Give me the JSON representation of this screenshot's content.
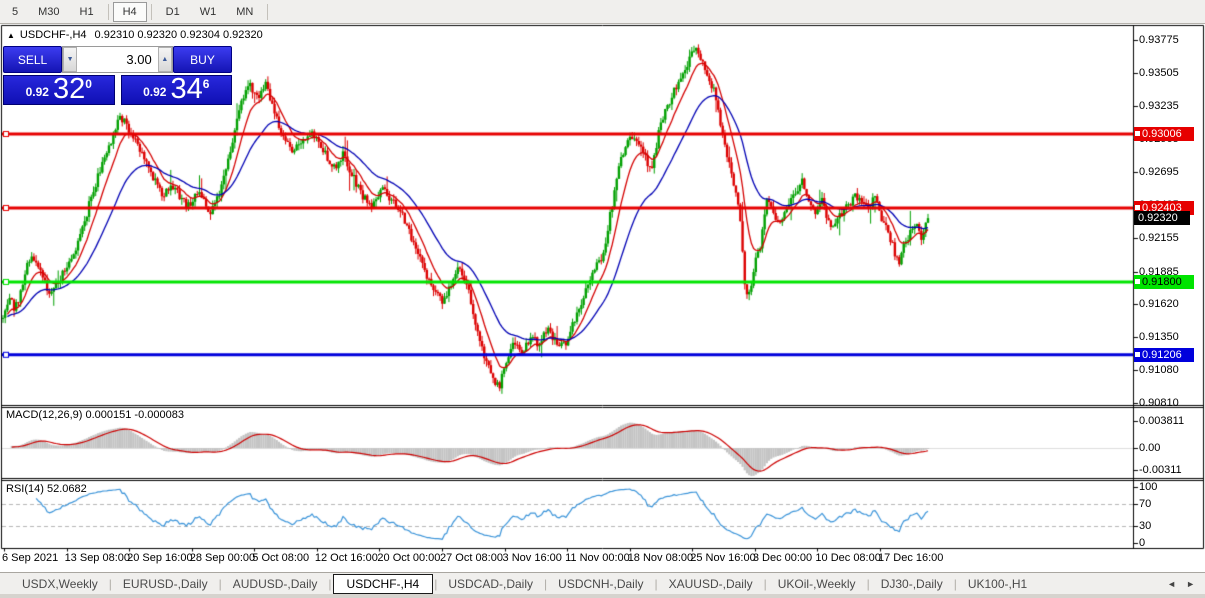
{
  "timeframes": {
    "items": [
      {
        "label": "5",
        "active": false,
        "divider_before": false
      },
      {
        "label": "M30",
        "active": false,
        "divider_before": false
      },
      {
        "label": "H1",
        "active": false,
        "divider_before": false
      },
      {
        "label": "H4",
        "active": true,
        "divider_before": true
      },
      {
        "label": "D1",
        "active": false,
        "divider_before": true
      },
      {
        "label": "W1",
        "active": false,
        "divider_before": false
      },
      {
        "label": "MN",
        "active": false,
        "divider_before": false,
        "divider_after": true
      }
    ]
  },
  "chart": {
    "collapse_icon": "▲",
    "title": "USDCHF-,H4",
    "ohlc": "0.92310 0.92320 0.92304 0.92320",
    "trade_panel": {
      "sell": "SELL",
      "buy": "BUY",
      "volume": "3.00",
      "down_arrow": "▼",
      "up_arrow": "▲",
      "sell_prefix": "0.92",
      "sell_big": "32",
      "sell_sup": "0",
      "buy_prefix": "0.92",
      "buy_big": "34",
      "buy_sup": "6"
    },
    "y_axis_ticks": [
      {
        "label": "0.93775",
        "price": 0.93775
      },
      {
        "label": "0.93505",
        "price": 0.93505
      },
      {
        "label": "0.93235",
        "price": 0.93235
      },
      {
        "label": "0.92965",
        "price": 0.92965
      },
      {
        "label": "0.92695",
        "price": 0.92695
      },
      {
        "label": "0.92425",
        "price": 0.92425
      },
      {
        "label": "0.92155",
        "price": 0.92155
      },
      {
        "label": "0.91885",
        "price": 0.91885
      },
      {
        "label": "0.91620",
        "price": 0.9162
      },
      {
        "label": "0.91350",
        "price": 0.9135
      },
      {
        "label": "0.91080",
        "price": 0.9108
      },
      {
        "label": "0.90810",
        "price": 0.9081
      }
    ],
    "h_lines": [
      {
        "label": "0.93006",
        "price": 0.93006,
        "color": "red"
      },
      {
        "label": "0.92403",
        "price": 0.92403,
        "color": "red"
      },
      {
        "label": "0.91800",
        "price": 0.918,
        "color": "green"
      },
      {
        "label": "0.91206",
        "price": 0.91206,
        "color": "blue"
      }
    ],
    "current_price": {
      "label": "0.92320",
      "price": 0.9232
    },
    "x_axis_labels": [
      "6 Sep 2021",
      "13 Sep 08:00",
      "20 Sep 16:00",
      "28 Sep 00:00",
      "5 Oct 08:00",
      "12 Oct 16:00",
      "20 Oct 00:00",
      "27 Oct 08:00",
      "3 Nov 16:00",
      "11 Nov 00:00",
      "18 Nov 08:00",
      "25 Nov 16:00",
      "3 Dec 00:00",
      "10 Dec 08:00",
      "17 Dec 16:00"
    ],
    "price_path": [
      [
        0,
        0.915
      ],
      [
        6,
        0.9168
      ],
      [
        12,
        0.9158
      ],
      [
        20,
        0.9178
      ],
      [
        28,
        0.9205
      ],
      [
        36,
        0.919
      ],
      [
        46,
        0.9172
      ],
      [
        56,
        0.918
      ],
      [
        66,
        0.9196
      ],
      [
        76,
        0.9213
      ],
      [
        88,
        0.9248
      ],
      [
        100,
        0.9278
      ],
      [
        110,
        0.93
      ],
      [
        118,
        0.9315
      ],
      [
        126,
        0.9303
      ],
      [
        136,
        0.9288
      ],
      [
        148,
        0.927
      ],
      [
        160,
        0.9248
      ],
      [
        168,
        0.926
      ],
      [
        176,
        0.925
      ],
      [
        186,
        0.9242
      ],
      [
        196,
        0.9256
      ],
      [
        206,
        0.9235
      ],
      [
        214,
        0.9248
      ],
      [
        222,
        0.9266
      ],
      [
        230,
        0.9296
      ],
      [
        238,
        0.9326
      ],
      [
        246,
        0.9344
      ],
      [
        254,
        0.933
      ],
      [
        262,
        0.9342
      ],
      [
        270,
        0.932
      ],
      [
        280,
        0.9298
      ],
      [
        290,
        0.9288
      ],
      [
        300,
        0.9297
      ],
      [
        310,
        0.93
      ],
      [
        320,
        0.9287
      ],
      [
        330,
        0.9272
      ],
      [
        340,
        0.9284
      ],
      [
        350,
        0.9266
      ],
      [
        360,
        0.925
      ],
      [
        370,
        0.9242
      ],
      [
        380,
        0.9256
      ],
      [
        390,
        0.9246
      ],
      [
        400,
        0.9233
      ],
      [
        410,
        0.9212
      ],
      [
        420,
        0.9192
      ],
      [
        430,
        0.9176
      ],
      [
        440,
        0.9164
      ],
      [
        448,
        0.918
      ],
      [
        456,
        0.9194
      ],
      [
        464,
        0.9176
      ],
      [
        472,
        0.915
      ],
      [
        480,
        0.9122
      ],
      [
        488,
        0.9106
      ],
      [
        496,
        0.9093
      ],
      [
        504,
        0.9117
      ],
      [
        512,
        0.9131
      ],
      [
        520,
        0.9123
      ],
      [
        528,
        0.9136
      ],
      [
        536,
        0.9128
      ],
      [
        544,
        0.9141
      ],
      [
        552,
        0.9133
      ],
      [
        560,
        0.9126
      ],
      [
        568,
        0.9141
      ],
      [
        576,
        0.9156
      ],
      [
        584,
        0.9176
      ],
      [
        592,
        0.919
      ],
      [
        600,
        0.9202
      ],
      [
        608,
        0.9238
      ],
      [
        616,
        0.9272
      ],
      [
        624,
        0.9297
      ],
      [
        632,
        0.93
      ],
      [
        640,
        0.9286
      ],
      [
        648,
        0.9272
      ],
      [
        656,
        0.9302
      ],
      [
        664,
        0.9322
      ],
      [
        672,
        0.9337
      ],
      [
        680,
        0.9348
      ],
      [
        688,
        0.9366
      ],
      [
        694,
        0.9371
      ],
      [
        700,
        0.9357
      ],
      [
        706,
        0.9348
      ],
      [
        712,
        0.9332
      ],
      [
        718,
        0.9305
      ],
      [
        724,
        0.9283
      ],
      [
        730,
        0.9262
      ],
      [
        736,
        0.924
      ],
      [
        742,
        0.9178
      ],
      [
        746,
        0.9168
      ],
      [
        752,
        0.9196
      ],
      [
        758,
        0.9212
      ],
      [
        764,
        0.9246
      ],
      [
        770,
        0.924
      ],
      [
        776,
        0.9226
      ],
      [
        782,
        0.924
      ],
      [
        788,
        0.9247
      ],
      [
        794,
        0.9256
      ],
      [
        800,
        0.9263
      ],
      [
        806,
        0.9242
      ],
      [
        812,
        0.9238
      ],
      [
        818,
        0.9248
      ],
      [
        824,
        0.9232
      ],
      [
        830,
        0.9226
      ],
      [
        836,
        0.9234
      ],
      [
        842,
        0.924
      ],
      [
        848,
        0.9246
      ],
      [
        854,
        0.925
      ],
      [
        860,
        0.9244
      ],
      [
        866,
        0.924
      ],
      [
        872,
        0.9252
      ],
      [
        878,
        0.9232
      ],
      [
        884,
        0.9226
      ],
      [
        890,
        0.9208
      ],
      [
        896,
        0.9196
      ],
      [
        902,
        0.9212
      ],
      [
        908,
        0.922
      ],
      [
        914,
        0.9224
      ],
      [
        919,
        0.9214
      ],
      [
        925,
        0.9232
      ]
    ],
    "colors": {
      "up": "#00a000",
      "down": "#dc0000",
      "ma_fast": "#d40000",
      "ma_slow": "#0000b4",
      "hline_red": "#e60000",
      "hline_green": "#00e400",
      "hline_blue": "#0000dc",
      "macd_hist": "#c4c4c4",
      "macd_signal": "#cc0000",
      "rsi_line": "#3b94d9"
    }
  },
  "macd_pane": {
    "label": "MACD(12,26,9)",
    "values": "0.000151 -0.000083",
    "ticks": [
      {
        "label": "0.003811",
        "v": 0.003811
      },
      {
        "label": "0.00",
        "v": 0
      },
      {
        "label": "-0.00311",
        "v": -0.00311
      }
    ]
  },
  "rsi_pane": {
    "label": "RSI(14)",
    "value": "52.0682",
    "ticks": [
      {
        "label": "100",
        "r": 100
      },
      {
        "label": "70",
        "r": 70
      },
      {
        "label": "30",
        "r": 30
      },
      {
        "label": "0",
        "r": 0
      }
    ],
    "levels": [
      70,
      30
    ]
  },
  "tab_bar": {
    "tabs": [
      {
        "label": "USDX,Weekly",
        "active": false
      },
      {
        "label": "EURUSD-,Daily",
        "active": false
      },
      {
        "label": "AUDUSD-,Daily",
        "active": false
      },
      {
        "label": "USDCHF-,H4",
        "active": true
      },
      {
        "label": "USDCAD-,Daily",
        "active": false
      },
      {
        "label": "USDCNH-,Daily",
        "active": false
      },
      {
        "label": "XAUUSD-,Daily",
        "active": false
      },
      {
        "label": "UKOil-,Weekly",
        "active": false
      },
      {
        "label": "DJ30-,Daily",
        "active": false
      },
      {
        "label": "UK100-,H1",
        "active": false
      }
    ],
    "nav_left": "◄",
    "nav_right": "►"
  }
}
